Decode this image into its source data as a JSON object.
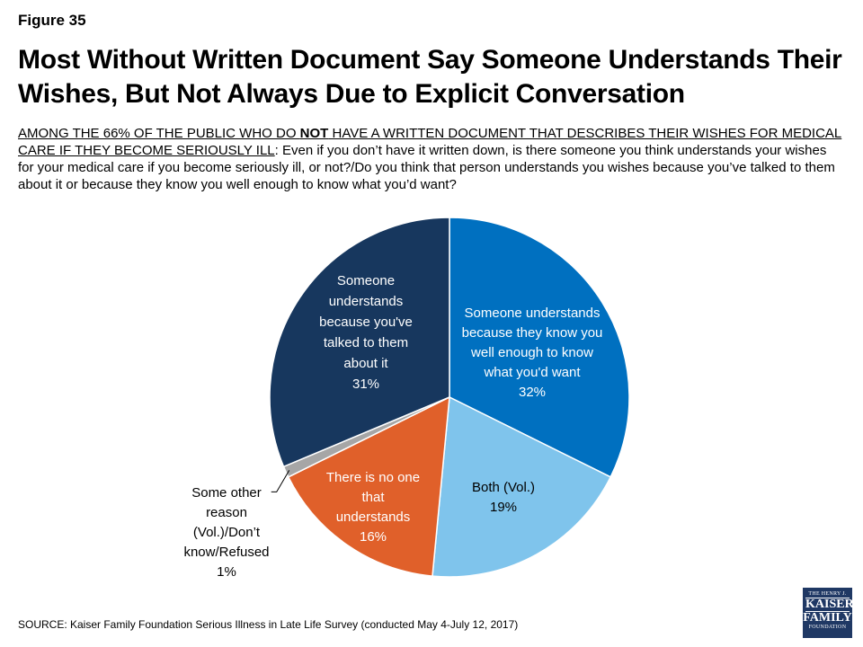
{
  "figure_label": "Figure 35",
  "title": "Most Without Written Document Say Someone Understands Their Wishes, But Not Always Due to Explicit Conversation",
  "question": {
    "part1": "AMONG THE 66% OF THE PUBLIC WHO DO ",
    "part_bold": "NOT",
    "part2": " HAVE A WRITTEN DOCUMENT THAT DESCRIBES THEIR WISHES FOR MEDICAL CARE IF THEY BECOME SERIOUSLY ILL",
    "rest": ": Even if you don’t have it written down, is there someone you think understands your wishes for your medical care if you become seriously ill, or not?/Do you think that person understands you wishes because you’ve talked to them about it or because they know you well enough to know what you’d want?"
  },
  "chart_data": {
    "type": "pie",
    "slices": [
      {
        "label": "Someone understands because they know you well enough to know what you'd want",
        "value": 32,
        "display": "32%",
        "color": "#0070c0",
        "text_color": "#ffffff",
        "lines": [
          "Someone understands",
          "because they know you",
          "well enough to know",
          "what you'd want",
          "32%"
        ]
      },
      {
        "label": "Both (Vol.)",
        "value": 19,
        "display": "19%",
        "color": "#7fc4ec",
        "text_color": "#000000",
        "lines": [
          "Both (Vol.)",
          "19%"
        ]
      },
      {
        "label": "There is no one that understands",
        "value": 16,
        "display": "16%",
        "color": "#e0602a",
        "text_color": "#ffffff",
        "lines": [
          "There is no one",
          "that",
          "understands",
          "16%"
        ]
      },
      {
        "label": "Some other reason (Vol.)/Don't know/Refused",
        "value": 1,
        "display": "1%",
        "color": "#a6a6a6",
        "text_color": "#000000",
        "lines": [
          "Some other",
          "reason",
          "(Vol.)/Don’t",
          "know/Refused",
          "1%"
        ]
      },
      {
        "label": "Someone understands because you've talked to them about it",
        "value": 31,
        "display": "31%",
        "color": "#17375e",
        "text_color": "#ffffff",
        "lines": [
          "Someone",
          "understands",
          "because you've",
          "talked to them",
          "about it",
          "31%"
        ]
      }
    ]
  },
  "source": "SOURCE: Kaiser Family Foundation Serious Illness in Late Life Survey (conducted May 4-July 12, 2017)",
  "logo": {
    "line1": "THE HENRY J.",
    "line2": "KAISER",
    "line3": "FAMILY",
    "line4": "FOUNDATION"
  }
}
